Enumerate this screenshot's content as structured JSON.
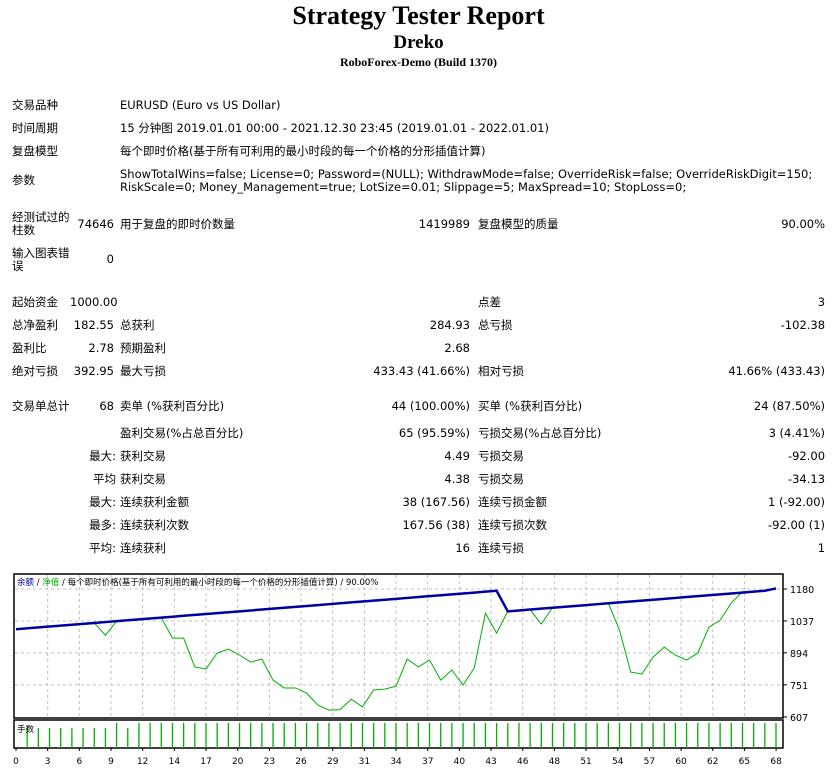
{
  "header": {
    "title": "Strategy Tester Report",
    "expert": "Dreko",
    "server": "RoboForex-Demo (Build 1370)"
  },
  "info": {
    "symbol_label": "交易品种",
    "symbol": "EURUSD (Euro vs US Dollar)",
    "period_label": "时间周期",
    "period": "15 分钟图 2019.01.01 00:00 - 2021.12.30 23:45 (2019.01.01 - 2022.01.01)",
    "model_label": "复盘模型",
    "model": "每个即时价格(基于所有可利用的最小时段的每一个价格的分形插值计算)",
    "params_label": "参数",
    "params_line1": "ShowTotalWins=false; License=0; Password=(NULL); WithdrawMode=false; OverrideRisk=false; OverrideRiskDigit=150;",
    "params_line2": "RiskScale=0; Money_Management=true; LotSize=0.01; Slippage=5; MaxSpread=10; StopLoss=0;",
    "bars_label": "经测试过的柱数",
    "bars": "74646",
    "ticks_label": "用于复盘的即时价数量",
    "ticks": "1419989",
    "quality_label": "复盘模型的质量",
    "quality": "90.00%",
    "errors_label": "输入图表错误",
    "errors": "0"
  },
  "stats": {
    "deposit_label": "起始资金",
    "deposit": "1000.00",
    "spread_label": "点差",
    "spread": "3",
    "net_label": "总净盈利",
    "net": "182.55",
    "gross_profit_label": "总获利",
    "gross_profit": "284.93",
    "gross_loss_label": "总亏损",
    "gross_loss": "-102.38",
    "pf_label": "盈利比",
    "pf": "2.78",
    "expected_label": "预期盈利",
    "expected": "2.68",
    "abs_dd_label": "绝对亏损",
    "abs_dd": "392.95",
    "max_dd_label": "最大亏损",
    "max_dd": "433.43 (41.66%)",
    "rel_dd_label": "相对亏损",
    "rel_dd": "41.66% (433.43)",
    "trades_label": "交易单总计",
    "trades": "68",
    "short_label": "卖单 (%获利百分比)",
    "short": "44 (100.00%)",
    "long_label": "买单 (%获利百分比)",
    "long": "24 (87.50%)",
    "win_label": "盈利交易(%占总百分比)",
    "win": "65 (95.59%)",
    "loss_label": "亏损交易(%占总百分比)",
    "loss": "3 (4.41%)",
    "largest_prefix": "最大:",
    "largest_win_label": "获利交易",
    "largest_win": "4.49",
    "largest_loss_label": "亏损交易",
    "largest_loss": "-92.00",
    "average_prefix": "平均",
    "average_win_label": "获利交易",
    "average_win": "4.38",
    "average_loss_label": "亏损交易",
    "average_loss": "-34.13",
    "maxcons_prefix": "最大:",
    "maxcons_win_label": "连续获利金额",
    "maxcons_win": "38 (167.56)",
    "maxcons_loss_label": "连续亏损金额",
    "maxcons_loss": "1 (-92.00)",
    "maxprof_prefix": "最多:",
    "maxprof_win_label": "连续获利次数",
    "maxprof_win": "167.56 (38)",
    "maxprof_loss_label": "连续亏损次数",
    "maxprof_loss": "-92.00 (1)",
    "avgcons_prefix": "平均:",
    "avgcons_win_label": "连续获利",
    "avgcons_win": "16",
    "avgcons_loss_label": "连续亏损",
    "avgcons_loss": "1"
  },
  "chart_data": {
    "type": "line",
    "legend": {
      "balance": "余额",
      "sep": " / ",
      "equity": "净值",
      "rest": " / 每个即时价格(基于所有可利用的最小时段的每一个价格的分形插值计算) / 90.00%"
    },
    "colors": {
      "balance": "#0000a0",
      "equity": "#00b000",
      "volume": "#00b000",
      "grid": "#c0c0c0"
    },
    "ylim": [
      607,
      1180
    ],
    "yticks": [
      "1180",
      "1037",
      "894",
      "751",
      "607"
    ],
    "xticks": [
      "0",
      "3",
      "6",
      "9",
      "12",
      "14",
      "17",
      "20",
      "23",
      "26",
      "29",
      "31",
      "34",
      "37",
      "40",
      "43",
      "46",
      "48",
      "51",
      "54",
      "57",
      "60",
      "62",
      "65",
      "68"
    ],
    "volume_label": "手数",
    "balance": [
      1000,
      1004,
      1008,
      1012,
      1016,
      1020,
      1024,
      1028,
      1032,
      1036,
      1040,
      1044,
      1048,
      1052,
      1056,
      1060,
      1064,
      1068,
      1072,
      1076,
      1080,
      1084,
      1088,
      1092,
      1096,
      1100,
      1104,
      1108,
      1112,
      1116,
      1120,
      1124,
      1128,
      1132,
      1136,
      1140,
      1144,
      1148,
      1152,
      1156,
      1160,
      1164,
      1168,
      1172,
      1080,
      1084,
      1088,
      1092,
      1096,
      1100,
      1104,
      1108,
      1112,
      1116,
      1120,
      1124,
      1128,
      1132,
      1136,
      1140,
      1144,
      1148,
      1152,
      1156,
      1160,
      1164,
      1168,
      1172,
      1182.55
    ],
    "equity": [
      1000,
      1004,
      1008,
      1012,
      1016,
      1020,
      1024,
      1028,
      973,
      1036,
      1040,
      1044,
      1048,
      1052,
      960,
      960,
      831,
      822,
      893,
      911,
      884,
      853,
      866,
      772,
      737,
      737,
      714,
      661,
      638,
      640,
      687,
      652,
      728,
      732,
      745,
      866,
      831,
      862,
      772,
      817,
      750,
      826,
      1072,
      982,
      1080,
      1084,
      1088,
      1023,
      1096,
      1100,
      1104,
      1108,
      1112,
      1116,
      996,
      808,
      799,
      875,
      920,
      884,
      862,
      893,
      1009,
      1040,
      1117,
      1168,
      1168,
      1172,
      1182.55
    ],
    "volume_level": [
      0,
      0.8,
      0.8,
      0.8,
      0.8,
      0.8,
      0.8,
      0.8,
      0.8,
      1,
      0.8,
      1,
      1,
      1,
      1,
      1,
      1,
      1,
      1,
      1,
      1,
      1,
      1,
      1,
      1,
      1,
      1,
      1,
      1,
      1,
      1,
      1,
      1,
      1,
      1,
      1,
      1,
      1,
      1,
      1,
      1,
      1,
      1,
      1,
      1,
      1,
      1,
      1,
      1,
      1,
      1,
      1,
      1,
      1,
      1,
      1,
      1,
      1,
      1,
      1,
      1,
      1,
      1,
      1,
      1,
      1,
      1,
      1,
      1
    ]
  }
}
